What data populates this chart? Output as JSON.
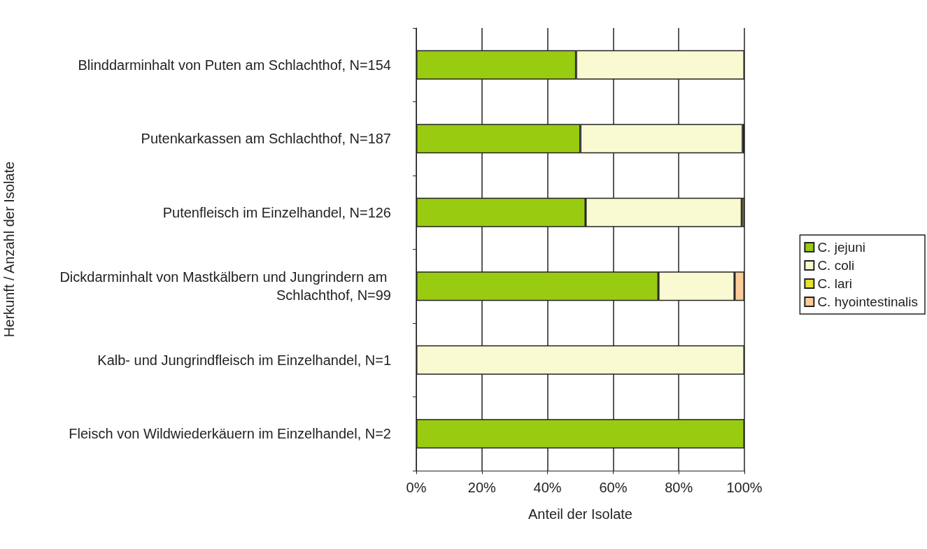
{
  "chart_data": {
    "type": "bar",
    "orientation": "horizontal",
    "stacked": true,
    "xlabel": "Anteil der Isolate",
    "ylabel": "Herkunft / Anzahl der Isolate",
    "categories": [
      "Blinddarminhalt von Puten am Schlachthof, N=154",
      "Putenkarkassen am Schlachthof, N=187",
      "Putenfleisch im Einzelhandel, N=126",
      "Dickdarminhalt von Mastkälbern und Jungrindern am Schlachthof, N=99",
      "Kalb- und Jungrindfleisch im Einzelhandel, N=1",
      "Fleisch von Wildwiederkäuern im Einzelhandel, N=2"
    ],
    "series": [
      {
        "name": "C. jejuni",
        "color": "#99cc11",
        "values": [
          48.7,
          50.0,
          51.6,
          73.8,
          null,
          100
        ]
      },
      {
        "name": "C. coli",
        "color": "#fafad2",
        "values": [
          51.3,
          49.5,
          47.6,
          23.2,
          100,
          null
        ]
      },
      {
        "name": "C. lari",
        "color": "#e6e22e",
        "values": [
          null,
          0.5,
          0.8,
          null,
          null,
          null
        ]
      },
      {
        "name": "C. hyointestinalis",
        "color": "#fccc99",
        "values": [
          null,
          null,
          null,
          3.0,
          null,
          null
        ]
      }
    ],
    "xlim": [
      0,
      100
    ],
    "xticks": [
      {
        "value": 0,
        "label": "0%"
      },
      {
        "value": 20,
        "label": "20%"
      },
      {
        "value": 40,
        "label": "40%"
      },
      {
        "value": 60,
        "label": "60%"
      },
      {
        "value": 80,
        "label": "80%"
      },
      {
        "value": 100,
        "label": "100%"
      }
    ],
    "grid": "x",
    "legend": "right"
  }
}
